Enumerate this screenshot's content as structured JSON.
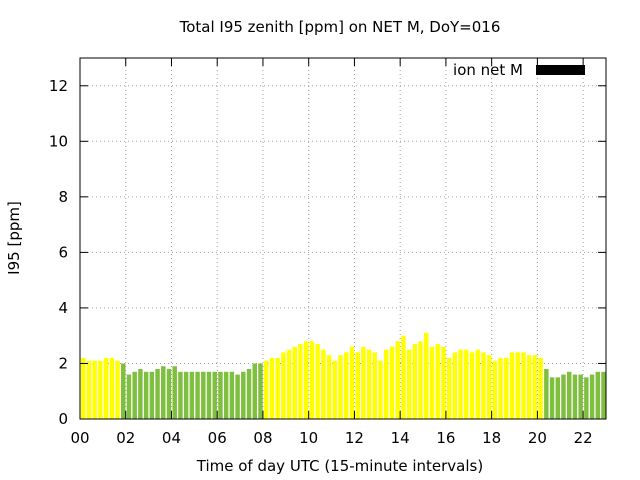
{
  "chart_data": {
    "type": "bar",
    "title": "Total I95 zenith [ppm] on NET M, DoY=016",
    "xlabel": "Time of day UTC (15-minute intervals)",
    "ylabel": "I95 [ppm]",
    "xlim": [
      0,
      23
    ],
    "ylim": [
      0,
      13
    ],
    "xticks": [
      "00",
      "02",
      "04",
      "06",
      "08",
      "10",
      "12",
      "14",
      "16",
      "18",
      "20",
      "22"
    ],
    "yticks": [
      "0",
      "2",
      "4",
      "6",
      "8",
      "10",
      "12"
    ],
    "grid": true,
    "legend": {
      "position": "top-right",
      "label": "ion net M",
      "color": "#000000"
    },
    "colors": {
      "yellow": "#ffff00",
      "green": "#7fbf3f"
    },
    "bar_interval_hours": 0.25,
    "values": [
      2.2,
      2.1,
      2.1,
      2.1,
      2.2,
      2.2,
      2.1,
      2.0,
      1.6,
      1.7,
      1.8,
      1.7,
      1.7,
      1.8,
      1.9,
      1.8,
      1.9,
      1.7,
      1.7,
      1.7,
      1.7,
      1.7,
      1.7,
      1.7,
      1.7,
      1.7,
      1.7,
      1.6,
      1.7,
      1.8,
      2.0,
      2.0,
      2.1,
      2.2,
      2.2,
      2.4,
      2.5,
      2.6,
      2.7,
      2.8,
      2.8,
      2.7,
      2.5,
      2.3,
      2.1,
      2.3,
      2.4,
      2.6,
      2.4,
      2.6,
      2.5,
      2.4,
      2.1,
      2.5,
      2.6,
      2.8,
      3.0,
      2.5,
      2.7,
      2.8,
      3.1,
      2.6,
      2.7,
      2.6,
      2.2,
      2.4,
      2.5,
      2.5,
      2.4,
      2.5,
      2.4,
      2.3,
      2.1,
      2.2,
      2.2,
      2.4,
      2.4,
      2.4,
      2.3,
      2.3,
      2.2,
      1.8,
      1.5,
      1.5,
      1.6,
      1.7,
      1.6,
      1.6,
      1.5,
      1.6,
      1.7,
      1.7
    ],
    "bar_colors": [
      "yellow",
      "yellow",
      "yellow",
      "yellow",
      "yellow",
      "yellow",
      "yellow",
      "green",
      "green",
      "green",
      "green",
      "green",
      "green",
      "green",
      "green",
      "green",
      "green",
      "green",
      "green",
      "green",
      "green",
      "green",
      "green",
      "green",
      "green",
      "green",
      "green",
      "green",
      "green",
      "green",
      "green",
      "green",
      "yellow",
      "yellow",
      "yellow",
      "yellow",
      "yellow",
      "yellow",
      "yellow",
      "yellow",
      "yellow",
      "yellow",
      "yellow",
      "yellow",
      "yellow",
      "yellow",
      "yellow",
      "yellow",
      "yellow",
      "yellow",
      "yellow",
      "yellow",
      "yellow",
      "yellow",
      "yellow",
      "yellow",
      "yellow",
      "yellow",
      "yellow",
      "yellow",
      "yellow",
      "yellow",
      "yellow",
      "yellow",
      "yellow",
      "yellow",
      "yellow",
      "yellow",
      "yellow",
      "yellow",
      "yellow",
      "yellow",
      "yellow",
      "yellow",
      "yellow",
      "yellow",
      "yellow",
      "yellow",
      "yellow",
      "yellow",
      "yellow",
      "green",
      "green",
      "green",
      "green",
      "green",
      "green",
      "green",
      "green",
      "green",
      "green",
      "green"
    ]
  }
}
